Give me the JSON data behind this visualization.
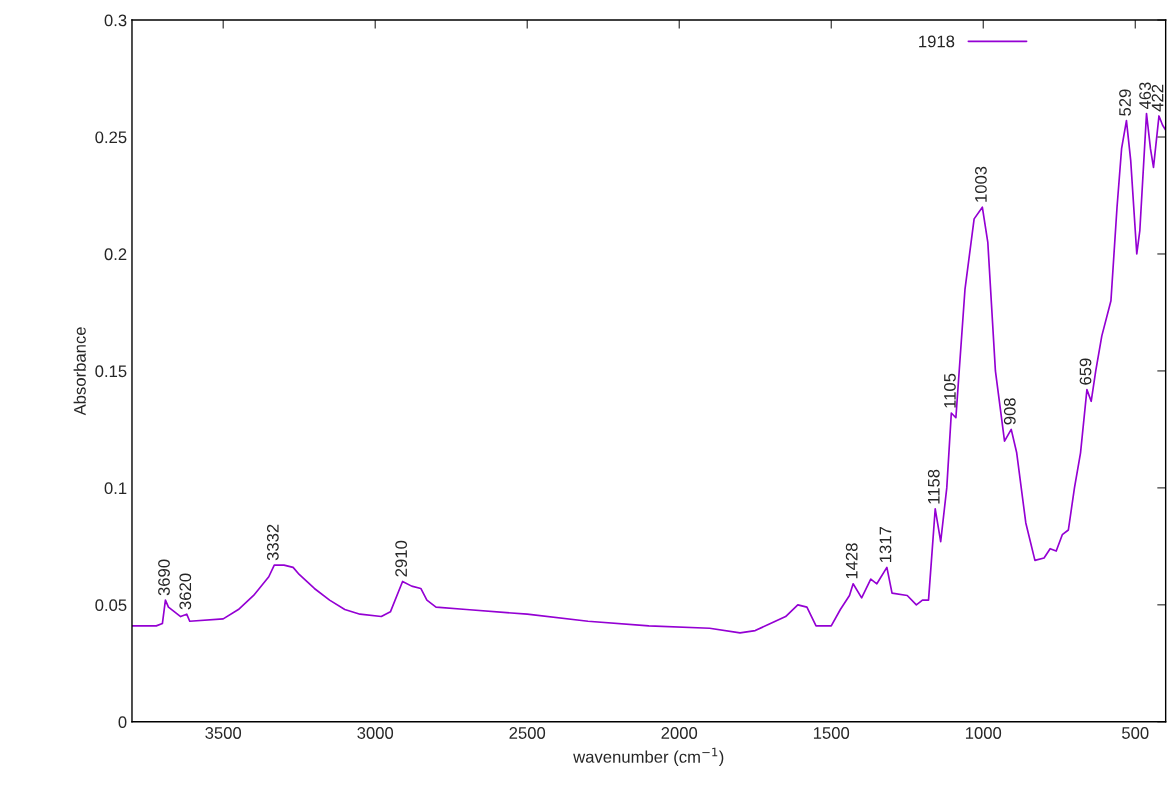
{
  "chart_data": {
    "type": "line",
    "xlabel": "wavenumber (cm$^{−1}$)",
    "ylabel": "Absorbance",
    "xlim": [
      3800,
      400
    ],
    "xticks": [
      3500,
      3000,
      2500,
      2000,
      1500,
      1000,
      500
    ],
    "ylim": [
      0,
      0.3
    ],
    "yticks": [
      0,
      0.05,
      0.1,
      0.15,
      0.2,
      0.25,
      0.3
    ],
    "grid": false,
    "legend": "top right",
    "marker": "none",
    "line_style": "solid",
    "series": [
      {
        "name": "1918",
        "color": "#9400d3",
        "x": [
          3800,
          3720,
          3700,
          3690,
          3680,
          3660,
          3640,
          3620,
          3610,
          3500,
          3450,
          3400,
          3350,
          3332,
          3300,
          3270,
          3250,
          3200,
          3150,
          3100,
          3050,
          2980,
          2950,
          2910,
          2880,
          2850,
          2830,
          2800,
          2700,
          2500,
          2300,
          2100,
          1900,
          1800,
          1750,
          1700,
          1650,
          1610,
          1580,
          1550,
          1500,
          1470,
          1440,
          1428,
          1400,
          1370,
          1350,
          1317,
          1300,
          1250,
          1220,
          1200,
          1180,
          1158,
          1140,
          1120,
          1105,
          1090,
          1060,
          1030,
          1003,
          985,
          960,
          930,
          908,
          890,
          860,
          830,
          800,
          780,
          760,
          740,
          720,
          700,
          680,
          659,
          645,
          630,
          610,
          580,
          560,
          545,
          529,
          515,
          495,
          485,
          463,
          450,
          440,
          422,
          410,
          400
        ],
        "values": [
          0.041,
          0.041,
          0.042,
          0.052,
          0.049,
          0.047,
          0.045,
          0.046,
          0.043,
          0.044,
          0.048,
          0.054,
          0.062,
          0.067,
          0.067,
          0.066,
          0.063,
          0.057,
          0.052,
          0.048,
          0.046,
          0.045,
          0.047,
          0.06,
          0.058,
          0.057,
          0.052,
          0.049,
          0.048,
          0.046,
          0.043,
          0.041,
          0.04,
          0.038,
          0.039,
          0.042,
          0.045,
          0.05,
          0.049,
          0.041,
          0.041,
          0.048,
          0.054,
          0.059,
          0.053,
          0.061,
          0.059,
          0.066,
          0.055,
          0.054,
          0.05,
          0.052,
          0.052,
          0.091,
          0.077,
          0.1,
          0.132,
          0.13,
          0.185,
          0.215,
          0.22,
          0.205,
          0.15,
          0.12,
          0.125,
          0.115,
          0.085,
          0.069,
          0.07,
          0.074,
          0.073,
          0.08,
          0.082,
          0.1,
          0.115,
          0.142,
          0.137,
          0.15,
          0.165,
          0.18,
          0.22,
          0.245,
          0.257,
          0.24,
          0.2,
          0.21,
          0.26,
          0.245,
          0.237,
          0.259,
          0.255,
          0.253
        ]
      }
    ],
    "annotations": [
      {
        "text": "3690",
        "x": 3690,
        "y": 0.052
      },
      {
        "text": "3620",
        "x": 3620,
        "y": 0.046
      },
      {
        "text": "3332",
        "x": 3332,
        "y": 0.067
      },
      {
        "text": "2910",
        "x": 2910,
        "y": 0.06
      },
      {
        "text": "1428",
        "x": 1428,
        "y": 0.059
      },
      {
        "text": "1317",
        "x": 1317,
        "y": 0.066
      },
      {
        "text": "1158",
        "x": 1158,
        "y": 0.091
      },
      {
        "text": "1105",
        "x": 1105,
        "y": 0.132
      },
      {
        "text": "1003",
        "x": 1003,
        "y": 0.22
      },
      {
        "text": "908",
        "x": 908,
        "y": 0.125
      },
      {
        "text": "659",
        "x": 659,
        "y": 0.142
      },
      {
        "text": "529",
        "x": 529,
        "y": 0.257
      },
      {
        "text": "463",
        "x": 463,
        "y": 0.26
      },
      {
        "text": "422",
        "x": 422,
        "y": 0.259
      }
    ]
  }
}
